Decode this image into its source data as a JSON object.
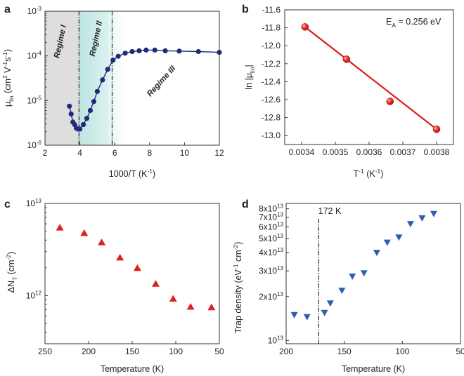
{
  "colors": {
    "navy": "#1f2b7a",
    "red": "#e0201d",
    "red_line": "#d81e1e",
    "blue_marker": "#2d5fb0",
    "regime1_shade": "#dedede",
    "regime2_shade": "#c8e9e6"
  },
  "chart_data": [
    {
      "panel": "a",
      "type": "line",
      "xlabel": "1000/T (K⁻¹)",
      "ylabel": "μlin (cm² V⁻¹s⁻¹)",
      "xlim": [
        2,
        12
      ],
      "ylim": [
        1e-06,
        0.001
      ],
      "yscale": "log",
      "x_ticks": [
        "2",
        "4",
        "6",
        "8",
        "10",
        "12"
      ],
      "y_ticks": [
        "10⁻⁶",
        "10⁻⁵",
        "10⁻⁴",
        "10⁻³"
      ],
      "regimes": [
        {
          "label": "Regime I",
          "x_range": [
            2,
            3.95
          ]
        },
        {
          "label": "Regime II",
          "x_range": [
            3.95,
            5.85
          ]
        },
        {
          "label": "Regime III",
          "x_range": [
            5.85,
            12
          ]
        }
      ],
      "boundaries_x": [
        3.95,
        5.85
      ],
      "series": [
        {
          "x": [
            3.4,
            3.5,
            3.6,
            3.7,
            3.8,
            3.9,
            4.0,
            4.2,
            4.4,
            4.6,
            4.8,
            5.0,
            5.3,
            5.6,
            5.9,
            6.2,
            6.6,
            7.0,
            7.4,
            7.8,
            8.3,
            8.9,
            9.7,
            10.8,
            12.0
          ],
          "y": [
            7.5e-06,
            5e-06,
            3.3e-06,
            2.9e-06,
            2.4e-06,
            2.3e-06,
            2.3e-06,
            2.9e-06,
            4e-06,
            6e-06,
            9.5e-06,
            1.6e-05,
            2.9e-05,
            5e-05,
            8e-05,
            9.8e-05,
            0.000115,
            0.000125,
            0.00013,
            0.000135,
            0.000135,
            0.00013,
            0.000128,
            0.000125,
            0.00012
          ]
        }
      ]
    },
    {
      "panel": "b",
      "type": "scatter",
      "xlabel": "T⁻¹ (K⁻¹)",
      "ylabel": "ln |μlin|",
      "annotation": "EA = 0.256 eV",
      "xlim": [
        0.00335,
        0.00385
      ],
      "ylim": [
        -13.1,
        -11.6
      ],
      "x_ticks": [
        "0.0034",
        "0.0035",
        "0.0036",
        "0.0037",
        "0.0038"
      ],
      "y_ticks": [
        "-11.6",
        "-11.8",
        "-12.0",
        "-12.2",
        "-12.4",
        "-12.6",
        "-12.8",
        "-13.0"
      ],
      "series": [
        {
          "x": [
            0.00341,
            0.003533,
            0.003662,
            0.0038
          ],
          "y": [
            -11.79,
            -12.15,
            -12.62,
            -12.93
          ]
        }
      ],
      "fit_line": {
        "x": [
          0.00341,
          0.0038
        ],
        "y": [
          -11.79,
          -12.93
        ]
      }
    },
    {
      "panel": "c",
      "type": "scatter",
      "xlabel": "Temperature (K)",
      "ylabel": "ΔNT (cm⁻²)",
      "xlim": [
        250,
        50
      ],
      "ylim": [
        300000000000.0,
        10000000000000.0
      ],
      "yscale": "log",
      "x_ticks": [
        "250",
        "200",
        "150",
        "100",
        "50"
      ],
      "y_ticks": [
        "10¹²",
        "10¹³"
      ],
      "series": [
        {
          "x": [
            233,
            205,
            185,
            164,
            144,
            123,
            103,
            83,
            59
          ],
          "y": [
            5500000000000.0,
            4800000000000.0,
            3800000000000.0,
            2600000000000.0,
            2000000000000.0,
            1350000000000.0,
            930000000000.0,
            760000000000.0,
            750000000000.0
          ]
        }
      ]
    },
    {
      "panel": "d",
      "type": "scatter",
      "xlabel": "Temperature (K)",
      "ylabel": "Trap density (eV⁻¹ cm⁻²)",
      "annotation": "172 K",
      "marker_line_x": 172,
      "xlim": [
        200,
        50
      ],
      "ylim": [
        9500000000000.0,
        87000000000000.0
      ],
      "yscale": "log",
      "x_ticks": [
        "200",
        "150",
        "100",
        "50"
      ],
      "y_ticks": [
        "10¹³",
        "2x10¹³",
        "3x10¹³",
        "4x10¹³",
        "5x10¹³",
        "6x10¹³",
        "7x10¹³",
        "8x10¹³"
      ],
      "series": [
        {
          "x": [
            193,
            182,
            167,
            162,
            152,
            143,
            133,
            122,
            113,
            103,
            93,
            83,
            73
          ],
          "y": [
            15000000000000.0,
            14500000000000.0,
            15500000000000.0,
            18000000000000.0,
            22000000000000.0,
            27500000000000.0,
            29000000000000.0,
            40000000000000.0,
            47000000000000.0,
            51000000000000.0,
            63000000000000.0,
            69000000000000.0,
            74000000000000.0
          ]
        }
      ]
    }
  ]
}
